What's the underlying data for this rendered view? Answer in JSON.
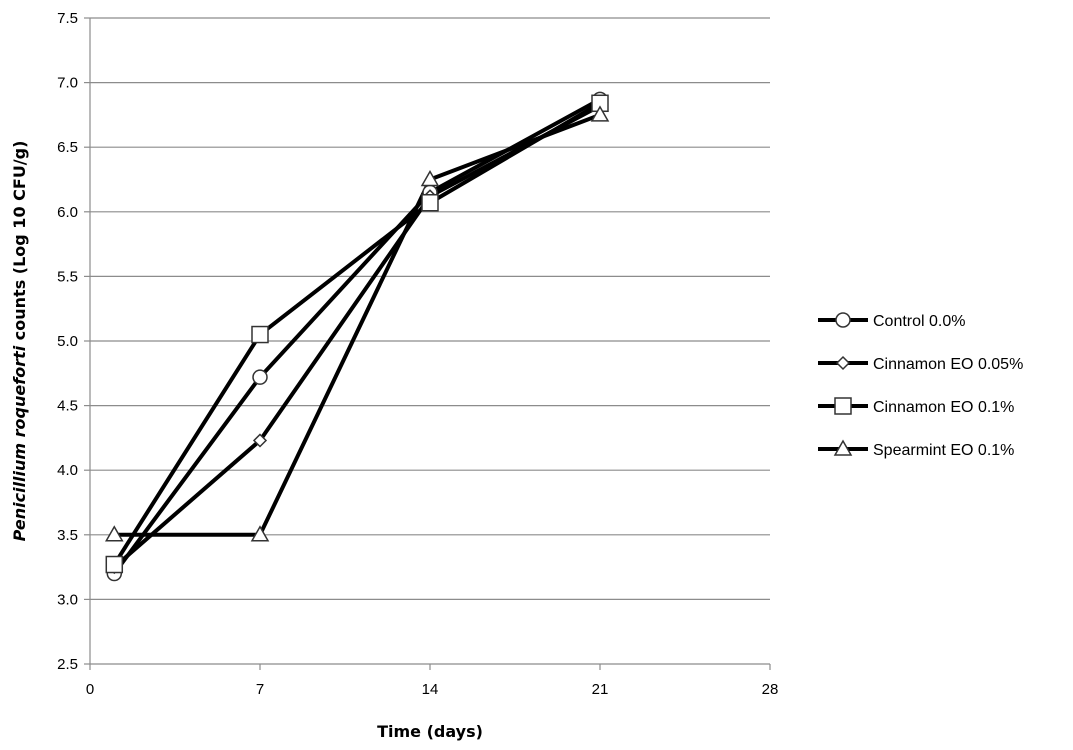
{
  "chart_data": {
    "type": "line",
    "xlabel": "Time (days)",
    "ylabel": {
      "italic": "Penicillium roqueforti",
      "rest": " counts (Log 10 CFU/g)"
    },
    "xlim": [
      0,
      28
    ],
    "ylim": [
      2.5,
      7.5
    ],
    "xticks": [
      "0",
      "7",
      "14",
      "21",
      "28"
    ],
    "yticks": [
      "2.5",
      "3.0",
      "3.5",
      "4.0",
      "4.5",
      "5.0",
      "5.5",
      "6.0",
      "6.5",
      "7.0",
      "7.5"
    ],
    "grid": "horizontal",
    "legend_position": "right",
    "series": [
      {
        "name": "Control 0.0%",
        "marker": "circle",
        "x": [
          1,
          7,
          14,
          21
        ],
        "y": [
          3.2,
          4.72,
          6.15,
          6.87
        ]
      },
      {
        "name": "Cinnamon EO 0.05%",
        "marker": "diamond",
        "x": [
          1,
          7,
          14,
          21
        ],
        "y": [
          3.25,
          4.23,
          6.12,
          6.82
        ]
      },
      {
        "name": "Cinnamon EO 0.1%",
        "marker": "square",
        "x": [
          1,
          7,
          14,
          21
        ],
        "y": [
          3.27,
          5.05,
          6.07,
          6.84
        ]
      },
      {
        "name": "Spearmint EO 0.1%",
        "marker": "triangle",
        "x": [
          1,
          7,
          14,
          21
        ],
        "y": [
          3.5,
          3.5,
          6.25,
          6.75
        ]
      }
    ]
  }
}
